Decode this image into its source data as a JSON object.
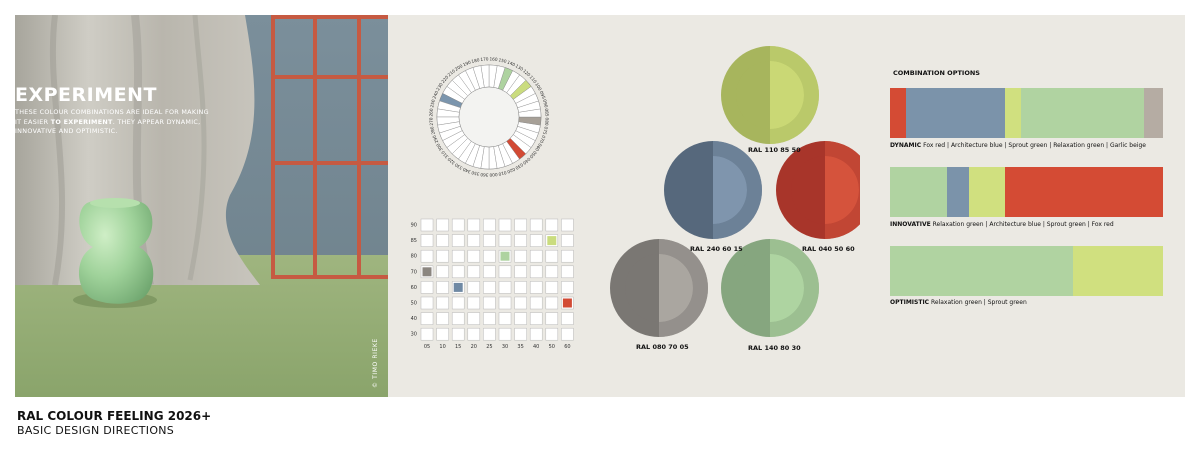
{
  "hero": {
    "title": "EXPERIMENT",
    "text_a": "THESE COLOUR COMBINATIONS ARE IDEAL FOR MAKING IT EASIER ",
    "text_bold": "TO EXPERIMENT",
    "text_b": ". THEY APPEAR DYNAMIC, INNOVATIVE AND OPTIMISTIC.",
    "credit": "© TIMO RIEKE"
  },
  "footer": {
    "title": "RAL COLOUR FEELING 2026+",
    "subtitle": "BASIC DESIGN DIRECTIONS"
  },
  "hue_wheel": {
    "labels": [
      "000",
      "010",
      "020",
      "030",
      "040",
      "050",
      "060",
      "070",
      "075",
      "080",
      "085",
      "090",
      "095",
      "100",
      "110",
      "120",
      "130",
      "140",
      "150",
      "160",
      "170",
      "180",
      "190",
      "200",
      "210",
      "220",
      "230",
      "240",
      "250",
      "260",
      "270",
      "280",
      "290",
      "300",
      "310",
      "320",
      "330",
      "340",
      "350",
      "360"
    ],
    "highlight_hues": [
      {
        "hue": "040",
        "color": "#d24a34"
      },
      {
        "hue": "080",
        "color": "#a7a097"
      },
      {
        "hue": "110",
        "color": "#cadc7e"
      },
      {
        "hue": "140",
        "color": "#aed3a0"
      },
      {
        "hue": "240",
        "color": "#7b95ad"
      }
    ]
  },
  "matrix": {
    "y_labels": [
      "90",
      "85",
      "80",
      "70",
      "60",
      "50",
      "40",
      "30"
    ],
    "x_labels": [
      "05",
      "10",
      "15",
      "20",
      "25",
      "30",
      "35",
      "40",
      "50",
      "60"
    ],
    "cells": [
      {
        "row": "85",
        "col": "50",
        "color": "#cadc7e"
      },
      {
        "row": "80",
        "col": "30",
        "color": "#aed3a0"
      },
      {
        "row": "70",
        "col": "05",
        "color": "#8b8680"
      },
      {
        "row": "60",
        "col": "15",
        "color": "#6f89a4"
      },
      {
        "row": "50",
        "col": "60",
        "color": "#d24a34"
      }
    ]
  },
  "swatches": [
    {
      "code": "RAL 110 85 50",
      "outer": "#a7b55d",
      "inner": "#cad875"
    },
    {
      "code": "RAL 240 60 15",
      "outer": "#56687c",
      "inner": "#7f95ad"
    },
    {
      "code": "RAL 040 50 60",
      "outer": "#a8352a",
      "inner": "#d5533c"
    },
    {
      "code": "RAL 080 70 05",
      "outer": "#7a7773",
      "inner": "#aaa6a0"
    },
    {
      "code": "RAL 140 80 30",
      "outer": "#86a67f",
      "inner": "#aed4a1"
    }
  ],
  "combinations": {
    "heading": "COMBINATION OPTIONS",
    "items": [
      {
        "name": "DYNAMIC",
        "desc": "Fox red | Architecture blue | Sprout green | Relaxation green | Garlic beige",
        "segments": [
          {
            "color": "#d44b34",
            "share": 0.06
          },
          {
            "color": "#7b93aa",
            "share": 0.36
          },
          {
            "color": "#d0e07f",
            "share": 0.06
          },
          {
            "color": "#b0d3a1",
            "share": 0.45
          },
          {
            "color": "#b5aca3",
            "share": 0.07
          }
        ]
      },
      {
        "name": "INNOVATIVE",
        "desc": "Relaxation green | Architecture blue | Sprout green | Fox red",
        "segments": [
          {
            "color": "#b0d3a1",
            "share": 0.21
          },
          {
            "color": "#7b93aa",
            "share": 0.08
          },
          {
            "color": "#d0e07f",
            "share": 0.13
          },
          {
            "color": "#d44b34",
            "share": 0.58
          }
        ]
      },
      {
        "name": "OPTIMISTIC",
        "desc": "Relaxation green | Sprout green",
        "segments": [
          {
            "color": "#b0d3a1",
            "share": 0.67
          },
          {
            "color": "#d0e07f",
            "share": 0.33
          }
        ]
      }
    ]
  }
}
